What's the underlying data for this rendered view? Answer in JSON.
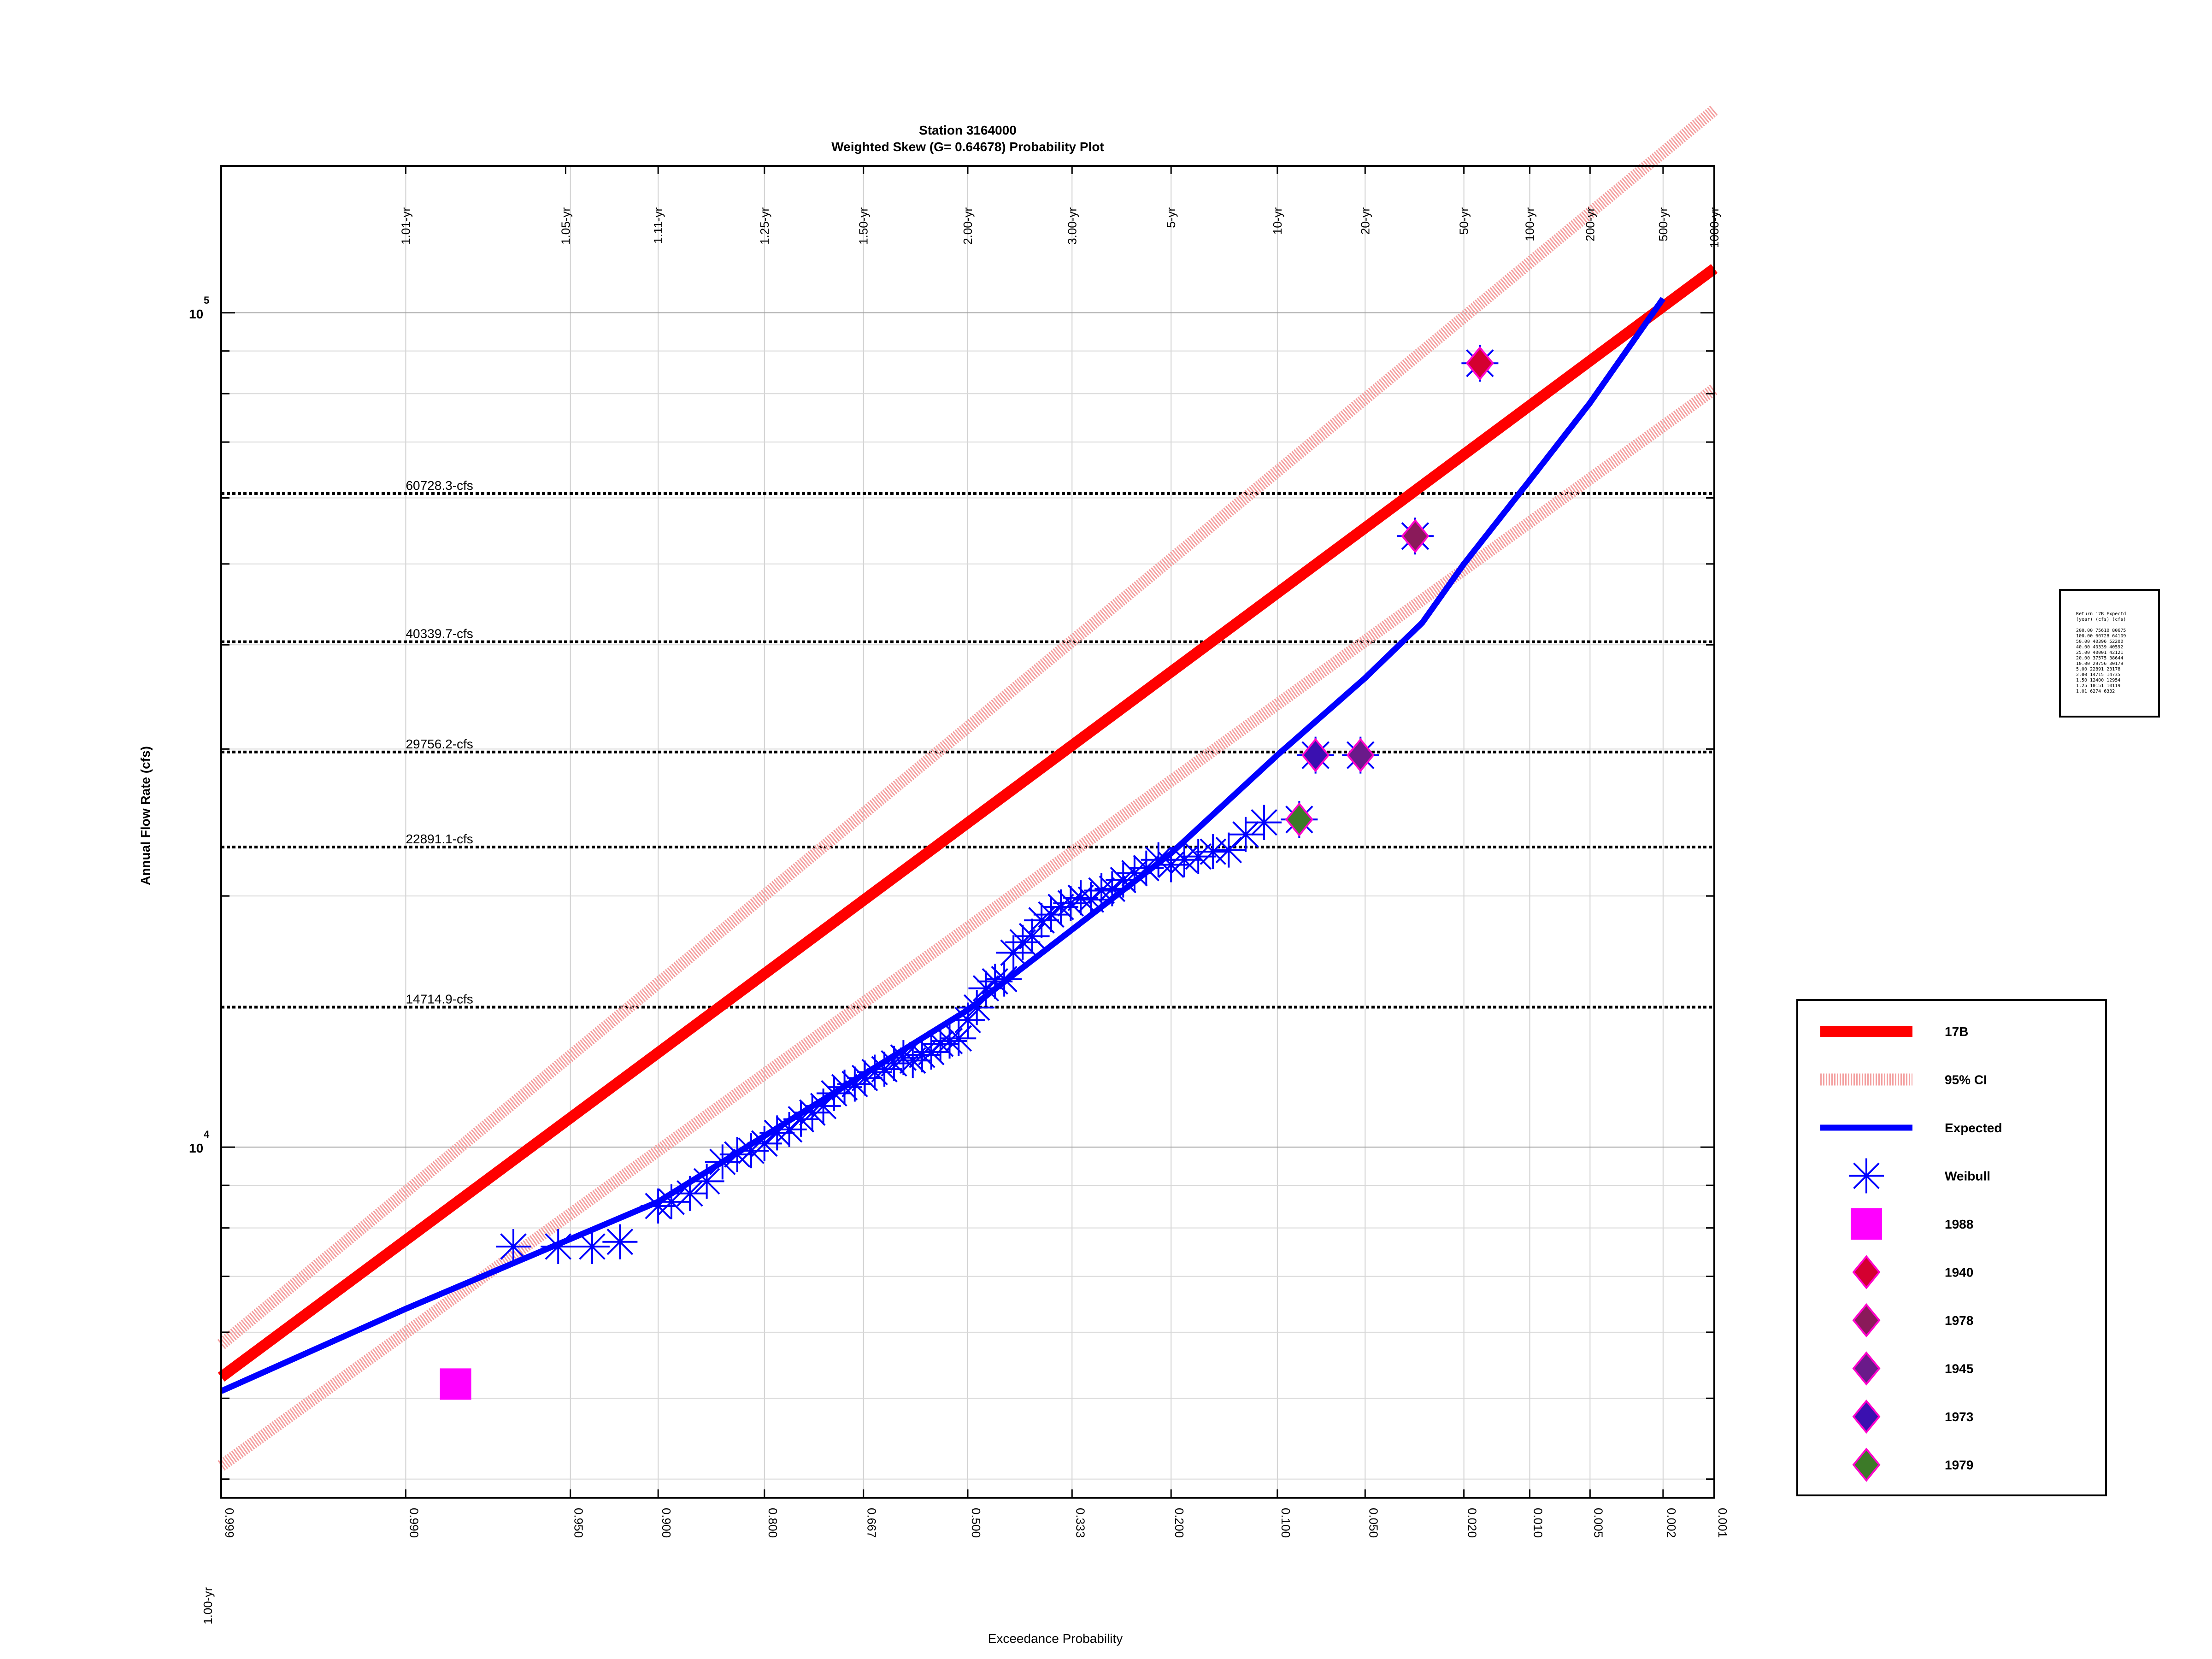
{
  "chart_data": {
    "type": "line",
    "title": "Station 3164000",
    "subtitle": "Weighted Skew (G= 0.64678) Probability Plot",
    "xlabel": "Exceedance Probability",
    "ylabel": "Annual Flow Rate (cfs)",
    "x_scale": "normal-probability",
    "y_scale": "log",
    "xlim": [
      0.999,
      0.001
    ],
    "ylim": [
      3800,
      150000
    ],
    "grid": true,
    "x_ticks": [
      {
        "p": 0.999,
        "label": "0.999"
      },
      {
        "p": 0.99,
        "label": "0.990"
      },
      {
        "p": 0.95,
        "label": "0.950"
      },
      {
        "p": 0.9,
        "label": "0.900"
      },
      {
        "p": 0.8,
        "label": "0.800"
      },
      {
        "p": 0.667,
        "label": "0.667"
      },
      {
        "p": 0.5,
        "label": "0.500"
      },
      {
        "p": 0.333,
        "label": "0.333"
      },
      {
        "p": 0.2,
        "label": "0.200"
      },
      {
        "p": 0.1,
        "label": "0.100"
      },
      {
        "p": 0.05,
        "label": "0.050"
      },
      {
        "p": 0.02,
        "label": "0.020"
      },
      {
        "p": 0.01,
        "label": "0.010"
      },
      {
        "p": 0.005,
        "label": "0.005"
      },
      {
        "p": 0.002,
        "label": "0.002"
      },
      {
        "p": 0.001,
        "label": "0.001"
      }
    ],
    "top_ticks": [
      {
        "p": 0.99,
        "label": "1.01-yr"
      },
      {
        "p": 0.952,
        "label": "1.05-yr"
      },
      {
        "p": 0.9,
        "label": "1.11-yr"
      },
      {
        "p": 0.8,
        "label": "1.25-yr"
      },
      {
        "p": 0.667,
        "label": "1.50-yr"
      },
      {
        "p": 0.5,
        "label": "2.00-yr"
      },
      {
        "p": 0.333,
        "label": "3.00-yr"
      },
      {
        "p": 0.2,
        "label": "5-yr"
      },
      {
        "p": 0.1,
        "label": "10-yr"
      },
      {
        "p": 0.05,
        "label": "20-yr"
      },
      {
        "p": 0.02,
        "label": "50-yr"
      },
      {
        "p": 0.01,
        "label": "100-yr"
      },
      {
        "p": 0.005,
        "label": "200-yr"
      },
      {
        "p": 0.002,
        "label": "500-yr"
      },
      {
        "p": 0.001,
        "label": "1000-yr"
      }
    ],
    "bottom_return_label": "1.00-yr",
    "y_major_ticks": [
      {
        "value": 10000,
        "base": "10",
        "exp": "4"
      },
      {
        "value": 100000,
        "base": "10",
        "exp": "5"
      }
    ],
    "y_minor_ticks": [
      4000,
      5000,
      6000,
      7000,
      8000,
      9000,
      20000,
      30000,
      40000,
      50000,
      60000,
      70000,
      80000,
      90000
    ],
    "reference_lines": [
      {
        "value": 60728.3,
        "label": "60728.3-cfs"
      },
      {
        "value": 40339.7,
        "label": "40339.7-cfs"
      },
      {
        "value": 29756.2,
        "label": "29756.2-cfs"
      },
      {
        "value": 22891.1,
        "label": "22891.1-cfs"
      },
      {
        "value": 14714.9,
        "label": "14714.9-cfs"
      }
    ],
    "series": [
      {
        "name": "17B",
        "style": "thick-line",
        "color": "#ff0000",
        "points": [
          [
            0.999,
            5300
          ],
          [
            0.001,
            113000
          ]
        ]
      },
      {
        "name": "95% CI",
        "style": "hatched-line",
        "color": "#f4a0a0",
        "upper": [
          [
            0.999,
            5800
          ],
          [
            0.001,
            175000
          ]
        ],
        "lower": [
          [
            0.999,
            4150
          ],
          [
            0.001,
            81000
          ]
        ]
      },
      {
        "name": "Expected",
        "style": "line",
        "color": "#0000ff",
        "points": [
          [
            0.999,
            5100
          ],
          [
            0.99,
            6400
          ],
          [
            0.9,
            8600
          ],
          [
            0.5,
            14600
          ],
          [
            0.2,
            22500
          ],
          [
            0.1,
            29500
          ],
          [
            0.05,
            36500
          ],
          [
            0.03,
            42500
          ],
          [
            0.02,
            50000
          ],
          [
            0.01,
            63000
          ],
          [
            0.005,
            78000
          ],
          [
            0.002,
            104000
          ]
        ]
      },
      {
        "name": "Weibull",
        "style": "asterisk",
        "color": "#0000ff",
        "points": [
          [
            0.97,
            7600
          ],
          [
            0.955,
            7600
          ],
          [
            0.94,
            7600
          ],
          [
            0.925,
            7700
          ],
          [
            0.9,
            8500
          ],
          [
            0.89,
            8600
          ],
          [
            0.875,
            8800
          ],
          [
            0.86,
            9100
          ],
          [
            0.845,
            9600
          ],
          [
            0.83,
            9800
          ],
          [
            0.815,
            9900
          ],
          [
            0.8,
            10100
          ],
          [
            0.785,
            10400
          ],
          [
            0.77,
            10500
          ],
          [
            0.755,
            10800
          ],
          [
            0.74,
            11000
          ],
          [
            0.725,
            11200
          ],
          [
            0.71,
            11600
          ],
          [
            0.695,
            11800
          ],
          [
            0.68,
            11900
          ],
          [
            0.665,
            12100
          ],
          [
            0.65,
            12300
          ],
          [
            0.635,
            12400
          ],
          [
            0.62,
            12600
          ],
          [
            0.605,
            12800
          ],
          [
            0.59,
            12700
          ],
          [
            0.575,
            12900
          ],
          [
            0.56,
            13000
          ],
          [
            0.545,
            13300
          ],
          [
            0.53,
            13400
          ],
          [
            0.515,
            13500
          ],
          [
            0.5,
            14200
          ],
          [
            0.485,
            14700
          ],
          [
            0.47,
            15500
          ],
          [
            0.455,
            15800
          ],
          [
            0.44,
            15900
          ],
          [
            0.425,
            17100
          ],
          [
            0.41,
            17600
          ],
          [
            0.395,
            17900
          ],
          [
            0.38,
            18700
          ],
          [
            0.365,
            19000
          ],
          [
            0.35,
            19400
          ],
          [
            0.335,
            19600
          ],
          [
            0.32,
            19900
          ],
          [
            0.305,
            19800
          ],
          [
            0.29,
            20300
          ],
          [
            0.275,
            20400
          ],
          [
            0.26,
            20900
          ],
          [
            0.245,
            21300
          ],
          [
            0.23,
            21600
          ],
          [
            0.215,
            22100
          ],
          [
            0.2,
            21800
          ],
          [
            0.185,
            22100
          ],
          [
            0.17,
            22300
          ],
          [
            0.155,
            22600
          ],
          [
            0.14,
            22700
          ],
          [
            0.125,
            23700
          ],
          [
            0.11,
            24500
          ]
        ]
      },
      {
        "name": "1988",
        "style": "square",
        "color": "#ff00ff",
        "points": [
          [
            0.983,
            5200
          ]
        ]
      },
      {
        "name": "1940",
        "style": "diamond",
        "color": "#d40030",
        "points": [
          [
            0.017,
            87000
          ]
        ]
      },
      {
        "name": "1978",
        "style": "diamond",
        "color": "#8a1a5a",
        "points": [
          [
            0.032,
            54000
          ]
        ]
      },
      {
        "name": "1945",
        "style": "diamond",
        "color": "#6a1a8a",
        "points": [
          [
            0.052,
            29500
          ]
        ]
      },
      {
        "name": "1973",
        "style": "diamond",
        "color": "#3a10b0",
        "points": [
          [
            0.075,
            29500
          ]
        ]
      },
      {
        "name": "1979",
        "style": "diamond",
        "color": "#3c7a28",
        "points": [
          [
            0.085,
            24700
          ]
        ]
      }
    ],
    "legend_position": "right"
  },
  "table_box": {
    "rows": [
      "Return   17B   Expectd",
      "(year)  (cfs)  (cfs)",
      "",
      "200.00  75610  80675",
      "100.00  60728  64109",
      " 50.00  40396  52200",
      " 40.00  40339  40592",
      " 25.00  40001  42121",
      " 20.00  37575  38644",
      " 10.00  29756  30179",
      "  5.00  22891  23178",
      "  2.00  14715  14735",
      "  1.50  12400  12954",
      "  1.25  10151  10119",
      "  1.01   6274   6332"
    ]
  }
}
